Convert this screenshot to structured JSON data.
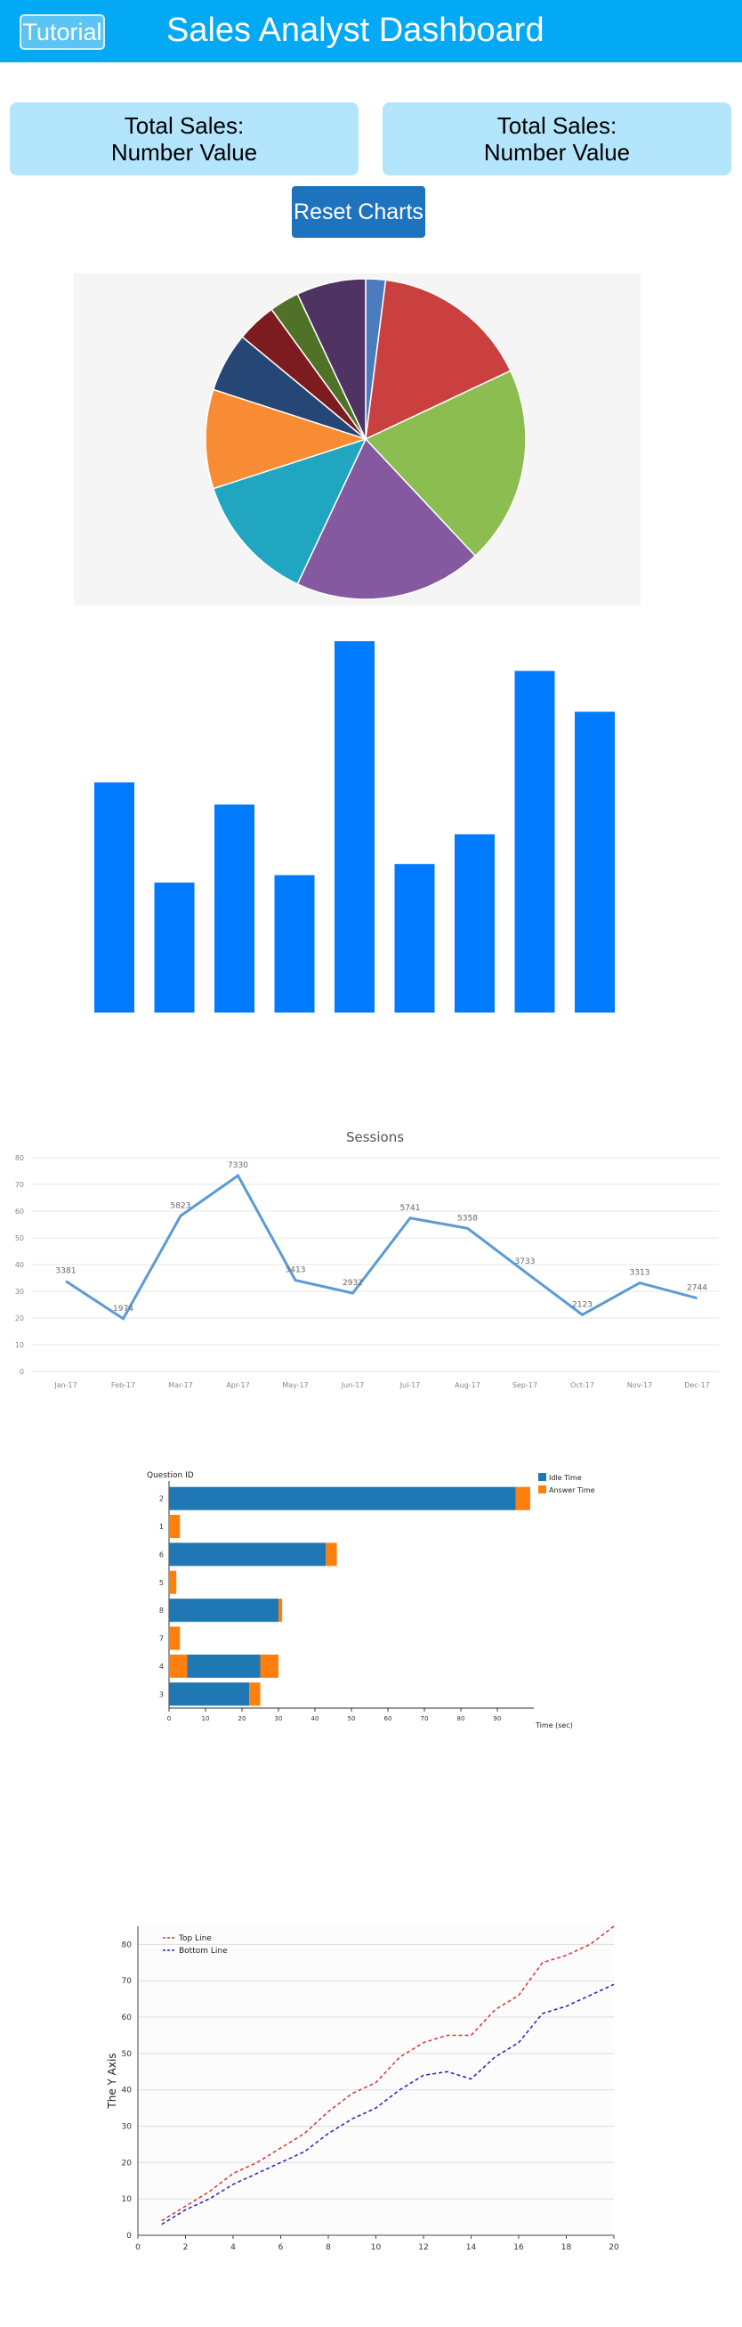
{
  "header": {
    "tutorial_label": "Tutorial",
    "title": "Sales Analyst Dashboard",
    "background_color": "#03a9f4"
  },
  "stats": [
    {
      "label": "Total Sales:",
      "value": "Number Value"
    },
    {
      "label": "Total Sales:",
      "value": "Number Value"
    }
  ],
  "controls": {
    "reset_label": "Reset Charts",
    "reset_color": "#1e73be"
  },
  "chart_data": [
    {
      "type": "pie",
      "slices": [
        {
          "value": 2,
          "color": "#4a7bbd"
        },
        {
          "value": 16,
          "color": "#c9403f"
        },
        {
          "value": 20,
          "color": "#8bbd51"
        },
        {
          "value": 19,
          "color": "#85599f"
        },
        {
          "value": 13,
          "color": "#21a6c2"
        },
        {
          "value": 10,
          "color": "#f88c34"
        },
        {
          "value": 6,
          "color": "#264676"
        },
        {
          "value": 4,
          "color": "#7c1b20"
        },
        {
          "value": 3,
          "color": "#4f7228"
        },
        {
          "value": 7,
          "color": "#4e3363"
        }
      ]
    },
    {
      "type": "bar",
      "color": "#007bff",
      "values": [
        62,
        35,
        56,
        37,
        100,
        40,
        48,
        92,
        81
      ],
      "ylim": [
        0,
        100
      ]
    },
    {
      "type": "line",
      "title": "Sessions",
      "categories": [
        "Jan-17",
        "Feb-17",
        "Mar-17",
        "Apr-17",
        "May-17",
        "Jun-17",
        "Jul-17",
        "Aug-17",
        "Sep-17",
        "Oct-17",
        "Nov-17",
        "Dec-17"
      ],
      "values": [
        3381,
        1974,
        5823,
        7330,
        3413,
        2932,
        5741,
        5358,
        3733,
        2123,
        3313,
        2744
      ],
      "ylim": [
        0,
        8000
      ],
      "y_ticks": [
        "0",
        "10",
        "20",
        "30",
        "40",
        "50",
        "60",
        "70",
        "80"
      ],
      "color": "#5b9bd5"
    },
    {
      "type": "bar",
      "orientation": "horizontal",
      "stacked": true,
      "y_title": "Question ID",
      "x_title": "Time (sec)",
      "categories": [
        "2",
        "1",
        "6",
        "5",
        "8",
        "7",
        "4",
        "3"
      ],
      "x_ticks": [
        "0",
        "10",
        "20",
        "30",
        "40",
        "50",
        "60",
        "70",
        "80",
        "90"
      ],
      "xlim": [
        0,
        100
      ],
      "series": [
        {
          "name": "Idle Time",
          "color": "#1f77b4",
          "values": [
            95,
            0,
            43,
            0,
            30,
            0,
            20,
            22
          ]
        },
        {
          "name": "Answer Time",
          "color": "#ff7f0e",
          "values": [
            4,
            3,
            3,
            2,
            1,
            3,
            5,
            3
          ]
        }
      ],
      "offsets": [
        0,
        0,
        0,
        0,
        0,
        0,
        0,
        0
      ],
      "answer_first": [
        false,
        false,
        false,
        false,
        false,
        false,
        true,
        false
      ],
      "legend_position": "top-right"
    },
    {
      "type": "line",
      "ylabel": "The Y Axis",
      "xlim": [
        0,
        20
      ],
      "ylim": [
        0,
        85
      ],
      "x_ticks": [
        "0",
        "2",
        "4",
        "6",
        "8",
        "10",
        "12",
        "14",
        "16",
        "18",
        "20"
      ],
      "y_ticks": [
        "0",
        "10",
        "20",
        "30",
        "40",
        "50",
        "60",
        "70",
        "80"
      ],
      "x": [
        1,
        2,
        3,
        4,
        5,
        6,
        7,
        8,
        9,
        10,
        11,
        12,
        13,
        14,
        15,
        16,
        17,
        18,
        19,
        20
      ],
      "series": [
        {
          "name": "Top Line",
          "color": "#e03030",
          "values": [
            4,
            8,
            12,
            17,
            20,
            24,
            28,
            34,
            39,
            42,
            49,
            53,
            55,
            55,
            62,
            66,
            75,
            77,
            80,
            85
          ]
        },
        {
          "name": "Bottom Line",
          "color": "#2020c0",
          "values": [
            3,
            7,
            10,
            14,
            17,
            20,
            23,
            28,
            32,
            35,
            40,
            44,
            45,
            43,
            49,
            53,
            61,
            63,
            66,
            69
          ]
        }
      ],
      "legend_position": "top-left"
    }
  ]
}
